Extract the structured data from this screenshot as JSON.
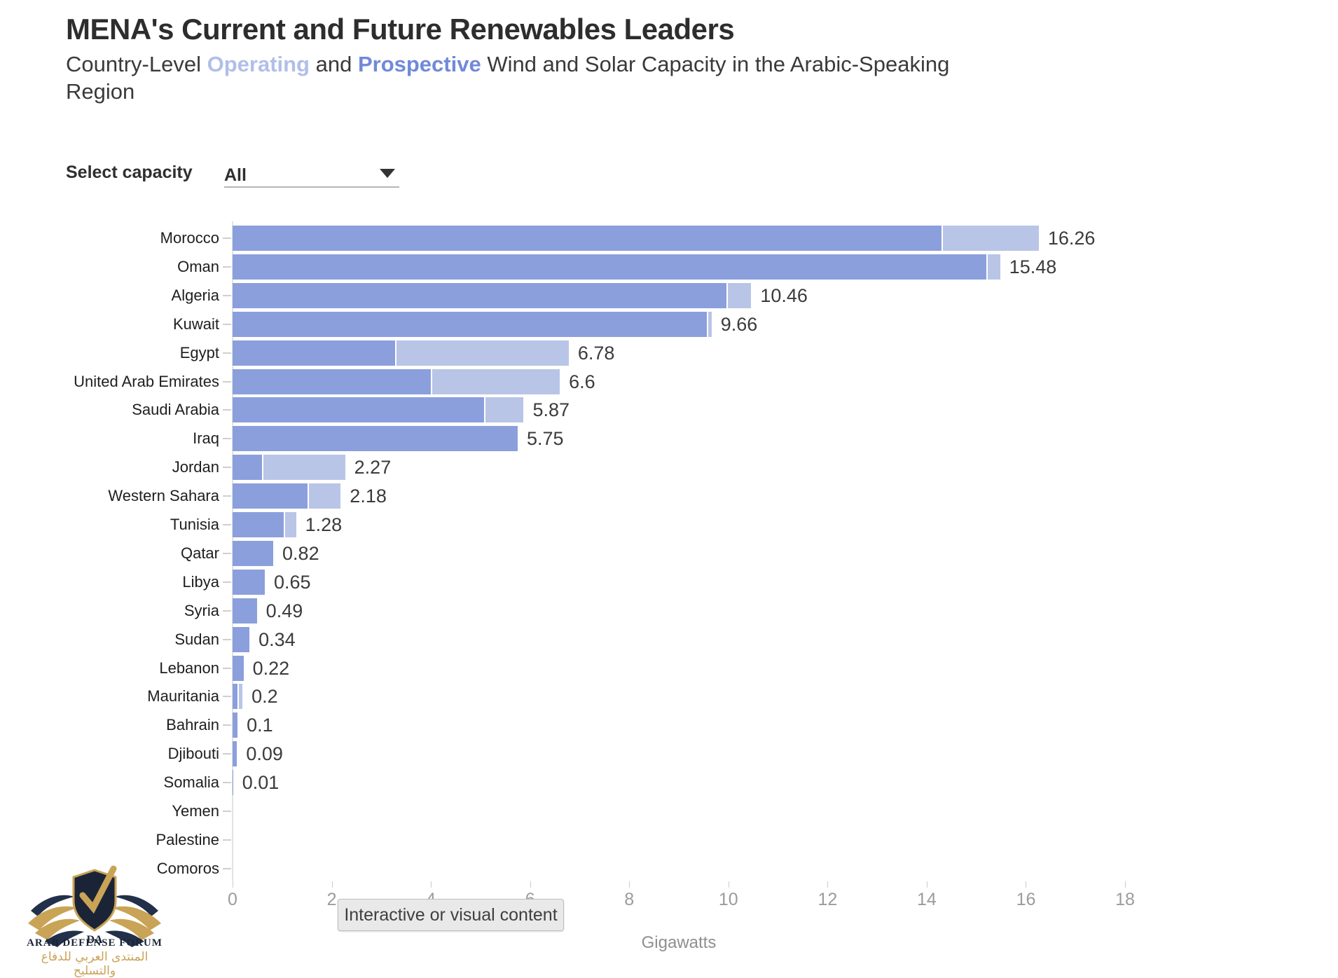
{
  "header": {
    "title": "MENA's Current and Future Renewables Leaders",
    "subtitle_parts": [
      {
        "text": "Country-Level ",
        "style": "plain"
      },
      {
        "text": "Operating",
        "style": "operating"
      },
      {
        "text": " and ",
        "style": "plain"
      },
      {
        "text": "Prospective",
        "style": "prospective"
      },
      {
        "text": " Wind and Solar Capacity in the Arabic-Speaking",
        "style": "plain"
      },
      {
        "text": "Region",
        "style": "plain",
        "break": true
      }
    ]
  },
  "controls": {
    "label": "Select capacity",
    "value": "All"
  },
  "chart_data": {
    "type": "bar",
    "orientation": "horizontal",
    "title": "MENA's Current and Future Renewables Leaders",
    "xlabel": "Gigawatts",
    "xlim": [
      0,
      18
    ],
    "x_ticks": [
      0,
      2,
      4,
      6,
      8,
      10,
      12,
      14,
      16,
      18
    ],
    "grid": false,
    "colors": {
      "prospective": "#8b9fdc",
      "operating": "#b9c5e6"
    },
    "categories": [
      "Morocco",
      "Oman",
      "Algeria",
      "Kuwait",
      "Egypt",
      "United Arab Emirates",
      "Saudi Arabia",
      "Iraq",
      "Jordan",
      "Western Sahara",
      "Tunisia",
      "Qatar",
      "Libya",
      "Syria",
      "Sudan",
      "Lebanon",
      "Mauritania",
      "Bahrain",
      "Djibouti",
      "Somalia",
      "Yemen",
      "Palestine",
      "Comoros"
    ],
    "series": [
      {
        "name": "Prospective",
        "color": "#8b9fdc",
        "values": [
          14.3,
          15.2,
          9.96,
          9.56,
          3.28,
          4.0,
          5.07,
          5.75,
          0.59,
          1.51,
          1.03,
          0.82,
          0.65,
          0.49,
          0.34,
          0.22,
          0.1,
          0.1,
          0.09,
          0.01,
          0,
          0,
          0
        ]
      },
      {
        "name": "Operating",
        "color": "#b9c5e6",
        "values": [
          1.96,
          0.28,
          0.5,
          0.1,
          3.5,
          2.6,
          0.8,
          0,
          1.68,
          0.67,
          0.25,
          0,
          0,
          0,
          0,
          0,
          0.1,
          0,
          0,
          0,
          0,
          0,
          0
        ]
      }
    ],
    "total_labels": [
      "16.26",
      "15.48",
      "10.46",
      "9.66",
      "6.78",
      "6.6",
      "5.87",
      "5.75",
      "2.27",
      "2.18",
      "1.28",
      "0.82",
      "0.65",
      "0.49",
      "0.34",
      "0.22",
      "0.2",
      "0.1",
      "0.09",
      "0.01",
      "",
      "",
      ""
    ]
  },
  "overlay": {
    "tooltip": "Interactive or visual content"
  },
  "watermark": {
    "monogram": "DA",
    "name": "ARAB DEFENSE FORUM",
    "name_arabic": "المنتدى العربي للدفاع والتسليح"
  }
}
